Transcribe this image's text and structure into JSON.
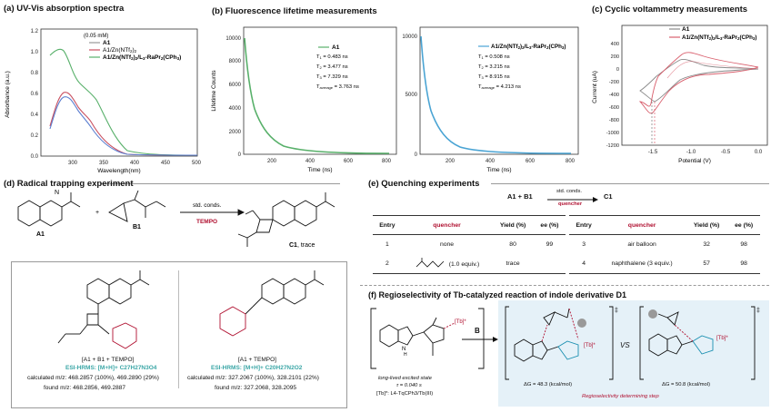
{
  "panel_a": {
    "title": "(a) UV-Vis absorption spectra",
    "conc_note": "(0.05 mM)",
    "legend": [
      "A1",
      "A1/Zn(NTf2)2",
      "A1/Zn(NTf2)2/L3-RaPr2(CPh3)"
    ],
    "ylabel": "Absorbance (a.u.)",
    "xlabel": "Wavelength(nm)",
    "xticks": [
      "300",
      "350",
      "400",
      "450",
      "500"
    ],
    "yticks": [
      "0.0",
      "0.2",
      "0.4",
      "0.6",
      "0.8",
      "1.0",
      "1.2"
    ]
  },
  "panel_b": {
    "title": "(b) Fluorescence lifetime measurements",
    "left": {
      "legend": "A1",
      "stats": [
        "T1 = 0.483 ns",
        "T2 = 3.477 ns",
        "T3 = 7.329 ns",
        "Taverage = 3.763 ns"
      ],
      "ylabel": "Lifetime Counts",
      "xlabel": "Time (ns)",
      "xticks": [
        "200",
        "400",
        "600",
        "800"
      ],
      "yticks": [
        "0",
        "2000",
        "4000",
        "6000",
        "8000",
        "10000"
      ]
    },
    "right": {
      "legend": "A1/Zn(NTf2)2/L3-RaPr2(CPh3)",
      "stats": [
        "T1 = 0.508 ns",
        "T2 = 3.215 ns",
        "T3 = 8.915 ns",
        "Taverage = 4.213 ns"
      ],
      "xlabel": "Time (ns)",
      "xticks": [
        "200",
        "400",
        "600",
        "800"
      ],
      "yticks": [
        "0",
        "5000",
        "10000"
      ]
    }
  },
  "panel_c": {
    "title": "(c) Cyclic voltammetry measurements",
    "legend": [
      "A1",
      "A1/Zn(NTf2)2/L3-RaPr2(CPh3)"
    ],
    "ylabel": "Current (uA)",
    "xlabel": "Potential (V)",
    "xticks": [
      "-1.5",
      "-1.0",
      "-0.5",
      "0.0"
    ],
    "yticks": [
      "-1200",
      "-1000",
      "-800",
      "-600",
      "-400",
      "-200",
      "0",
      "200",
      "400"
    ]
  },
  "panel_d": {
    "title": "(d) Radical trapping experiment",
    "labels": {
      "a1": "A1",
      "b1": "B1",
      "c1": "C1, trace",
      "cond": "std. conds.",
      "tempo": "TEMPO",
      "plus": "+"
    },
    "adduct1": {
      "label": "[A1 + B1 + TEMPO]",
      "hrms": "ESI-HRMS: [M+H]+ C27H27N3O4",
      "calc": "calculated m/z: 468.2857 (100%), 469.2890 (29%)",
      "found": "found m/z: 468.2856, 469.2887"
    },
    "adduct2": {
      "label": "[A1 + TEMPO]",
      "hrms": "ESI-HRMS: [M+H]+ C20H27N2O2",
      "calc": "calculated m/z: 327.2067 (100%), 328.2101 (22%)",
      "found": "found m/z: 327.2068, 328.2095"
    }
  },
  "panel_e": {
    "title": "(e) Quenching experiments",
    "scheme": {
      "reactants": "A1 + B1",
      "cond": "std. conds.",
      "quencher": "quencher",
      "product": "C1"
    },
    "headers": [
      "Entry",
      "quencher",
      "Yield (%)",
      "ee (%)"
    ],
    "left_rows": [
      [
        "1",
        "none",
        "80",
        "99"
      ],
      [
        "2",
        "(1.0 equiv.)",
        "trace",
        ""
      ]
    ],
    "right_rows": [
      [
        "3",
        "air balloon",
        "32",
        "98"
      ],
      [
        "4",
        "naphthalene (3 equiv.)",
        "57",
        "98"
      ]
    ]
  },
  "panel_f": {
    "title": "(f) Regioselectivity of Tb-catalyzed reaction of indole derivative D1",
    "excited": "long-lived excited state",
    "tau": "τ = 0.040 s",
    "tb_def": "[Tb]*: L4-TqCPh3/Tb(III)",
    "reagent": "B",
    "vs": "VS",
    "dg1": "ΔG = 48.3 (kcal/mol)",
    "dg2": "ΔG = 50.8 (kcal/mol)",
    "note": "Regioselectivity determining step",
    "tb_label": "[Tb]*",
    "dagger": "‡"
  }
}
